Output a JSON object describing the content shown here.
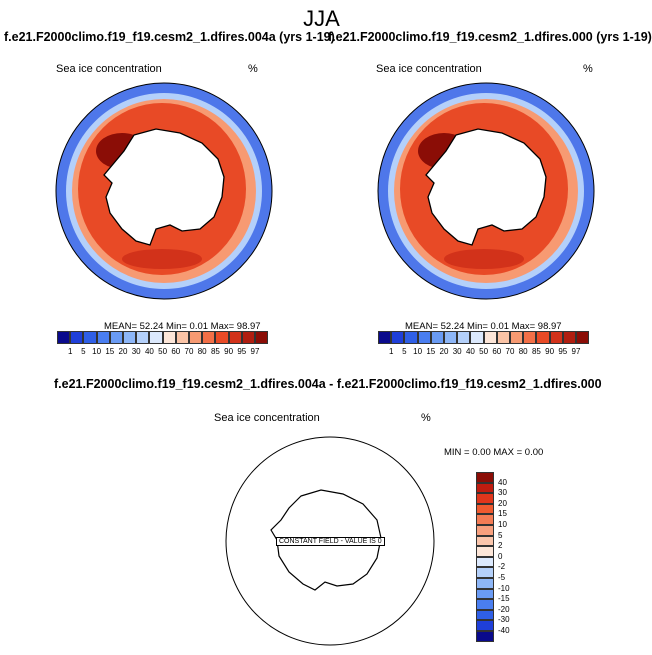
{
  "season": "JJA",
  "panels": [
    {
      "title": "f.e21.F2000climo.f19_f19.cesm2_1.dfires.004a (yrs 1-19)",
      "variable": "Sea ice concentration",
      "units": "%",
      "stats": "MEAN=  52.24  Min=  0.01  Max=  98.97"
    },
    {
      "title": "f.e21.F2000climo.f19_f19.cesm2_1.dfires.000 (yrs 1-19)",
      "variable": "Sea ice concentration",
      "units": "%",
      "stats": "MEAN=  52.24  Min=  0.01  Max=  98.97"
    }
  ],
  "colorbar": {
    "levels": [
      "1",
      "5",
      "10",
      "15",
      "20",
      "30",
      "40",
      "50",
      "60",
      "70",
      "80",
      "85",
      "90",
      "95",
      "97"
    ],
    "colors": [
      "#0a0a8c",
      "#1f3fd9",
      "#2f5fe6",
      "#4a7ef0",
      "#6a9bf4",
      "#8db6f7",
      "#b4d0fa",
      "#dce9fd",
      "#fde6d8",
      "#fbc4a6",
      "#f79a72",
      "#f26f47",
      "#e84a26",
      "#d2321a",
      "#b01e10",
      "#8b0d06"
    ]
  },
  "diff": {
    "title": "f.e21.F2000climo.f19_f19.cesm2_1.dfires.004a - f.e21.F2000climo.f19_f19.cesm2_1.dfires.000",
    "variable": "Sea ice concentration",
    "units": "%",
    "stats": "MIN =   0.00 MAX =   0.00",
    "constant_label": "CONSTANT FIELD - VALUE IS 0",
    "levels": [
      "40",
      "30",
      "20",
      "15",
      "10",
      "5",
      "2",
      "0",
      "-2",
      "-5",
      "-10",
      "-15",
      "-20",
      "-30",
      "-40"
    ],
    "colors": [
      "#8b0d06",
      "#c01c10",
      "#e0361c",
      "#ef5a30",
      "#f47c55",
      "#f8a07e",
      "#fbc6ac",
      "#fde6d8",
      "#dce9fd",
      "#b4d0fa",
      "#8db6f7",
      "#6a9bf4",
      "#4a7ef0",
      "#2f5fe6",
      "#1f3fd9",
      "#0a0a8c"
    ]
  }
}
